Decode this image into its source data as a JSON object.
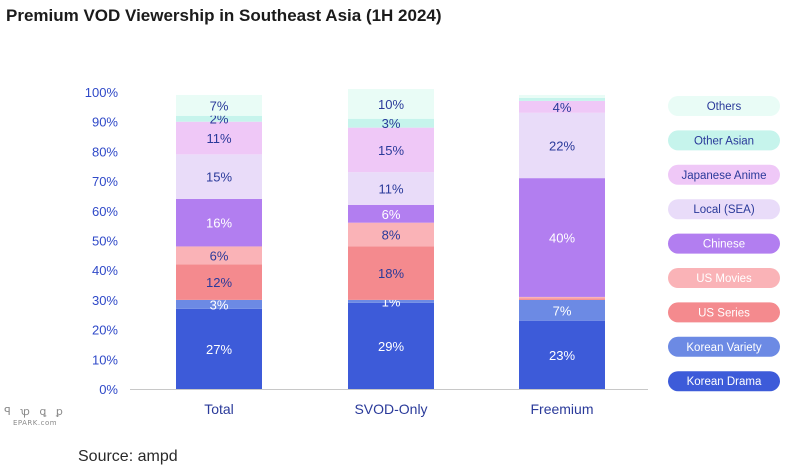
{
  "title": "Premium VOD Viewership in Southeast Asia (1H 2024)",
  "source": "Source: ampd",
  "watermark": {
    "mark": "ꟼ ꝕ ꝗ ꝑ",
    "text": "EPARK.com"
  },
  "chart_data": {
    "type": "bar",
    "stacked": true,
    "title": "Premium VOD Viewership in Southeast Asia (1H 2024)",
    "categories": [
      "Total",
      "SVOD-Only",
      "Freemium"
    ],
    "yticks": [
      "0%",
      "10%",
      "20%",
      "30%",
      "40%",
      "50%",
      "60%",
      "70%",
      "80%",
      "90%",
      "100%"
    ],
    "ylim": [
      0,
      100
    ],
    "grid": false,
    "legend_position": "right",
    "series": [
      {
        "name": "Korean Drama",
        "color": "#3d5bd9",
        "label_color": "#ffffff",
        "values": [
          27,
          29,
          23
        ],
        "labels": [
          "27%",
          "29%",
          "23%"
        ]
      },
      {
        "name": "Korean Variety",
        "color": "#6c8ae4",
        "label_color": "#ffffff",
        "values": [
          3,
          1,
          7
        ],
        "labels": [
          "3%",
          "1%",
          "7%"
        ]
      },
      {
        "name": "US Series",
        "color": "#f48a8e",
        "label_color": "#2a3a9a",
        "values": [
          12,
          18,
          0.5
        ],
        "labels": [
          "12%",
          "18%",
          ""
        ]
      },
      {
        "name": "US Movies",
        "color": "#fab3b7",
        "label_color": "#2a3a9a",
        "values": [
          6,
          8,
          0.5
        ],
        "labels": [
          "6%",
          "8%",
          ""
        ]
      },
      {
        "name": "Chinese",
        "color": "#b27ef0",
        "label_color": "#ffffff",
        "values": [
          16,
          6,
          40
        ],
        "labels": [
          "16%",
          "6%",
          "40%"
        ]
      },
      {
        "name": "Local (SEA)",
        "color": "#e9dcf9",
        "label_color": "#2a3a9a",
        "values": [
          15,
          11,
          22
        ],
        "labels": [
          "15%",
          "11%",
          "22%"
        ]
      },
      {
        "name": "Japanese Anime",
        "color": "#efc8f7",
        "label_color": "#2a3a9a",
        "values": [
          11,
          15,
          4
        ],
        "labels": [
          "11%",
          "15%",
          "4%"
        ]
      },
      {
        "name": "Other Asian",
        "color": "#c6f4ec",
        "label_color": "#2a3a9a",
        "values": [
          2,
          3,
          1
        ],
        "labels": [
          "2%",
          "3%",
          ""
        ]
      },
      {
        "name": "Others",
        "color": "#e9fcf6",
        "label_color": "#2a3a9a",
        "values": [
          7,
          10,
          1
        ],
        "labels": [
          "7%",
          "10%",
          ""
        ]
      }
    ],
    "legend": [
      {
        "name": "Others",
        "fill": "#e9fcf6",
        "text": "#2a3a9a"
      },
      {
        "name": "Other Asian",
        "fill": "#c6f4ec",
        "text": "#2a3a9a"
      },
      {
        "name": "Japanese Anime",
        "fill": "#efc8f7",
        "text": "#2a3a9a"
      },
      {
        "name": "Local (SEA)",
        "fill": "#e9dcf9",
        "text": "#2a3a9a"
      },
      {
        "name": "Chinese",
        "fill": "#b27ef0",
        "text": "#ffffff"
      },
      {
        "name": "US Movies",
        "fill": "#fab3b7",
        "text": "#ffffff"
      },
      {
        "name": "US Series",
        "fill": "#f48a8e",
        "text": "#ffffff"
      },
      {
        "name": "Korean Variety",
        "fill": "#6c8ae4",
        "text": "#ffffff"
      },
      {
        "name": "Korean Drama",
        "fill": "#3d5bd9",
        "text": "#ffffff"
      }
    ],
    "colors": {
      "axis_labels": "#2f49c8",
      "category_labels": "#2a3a9a",
      "axis_line": "#c8c8c8"
    }
  }
}
